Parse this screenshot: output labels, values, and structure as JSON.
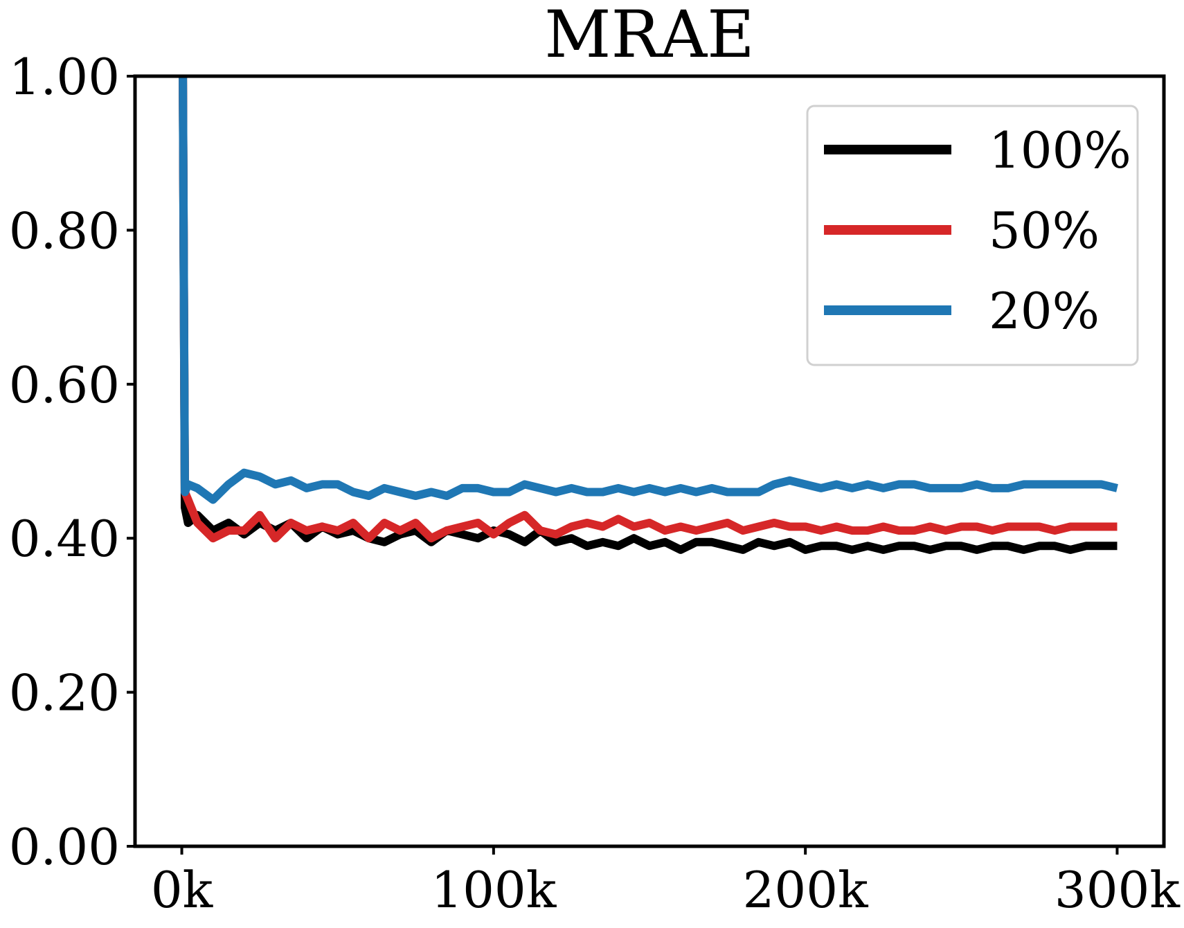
{
  "chart_data": {
    "type": "line",
    "title": "MRAE",
    "xlabel": "",
    "ylabel": "",
    "xlim": [
      -15000,
      315000
    ],
    "ylim": [
      0.0,
      1.0
    ],
    "x_ticks": [
      0,
      100000,
      200000,
      300000
    ],
    "x_tick_labels": [
      "0k",
      "100k",
      "200k",
      "300k"
    ],
    "y_ticks": [
      0.0,
      0.2,
      0.4,
      0.6,
      0.8,
      1.0
    ],
    "y_tick_labels": [
      "0.00",
      "0.20",
      "0.40",
      "0.60",
      "0.80",
      "1.00"
    ],
    "grid": false,
    "legend_position": "top-right",
    "x": [
      0,
      1000,
      2000,
      5000,
      10000,
      15000,
      20000,
      25000,
      30000,
      35000,
      40000,
      45000,
      50000,
      55000,
      60000,
      65000,
      70000,
      75000,
      80000,
      85000,
      90000,
      95000,
      100000,
      105000,
      110000,
      115000,
      120000,
      125000,
      130000,
      135000,
      140000,
      145000,
      150000,
      155000,
      160000,
      165000,
      170000,
      175000,
      180000,
      185000,
      190000,
      195000,
      200000,
      205000,
      210000,
      215000,
      220000,
      225000,
      230000,
      235000,
      240000,
      245000,
      250000,
      255000,
      260000,
      265000,
      270000,
      275000,
      280000,
      285000,
      290000,
      295000,
      300000
    ],
    "series": [
      {
        "name": "100%",
        "color": "#000000",
        "values": [
          1.3,
          0.44,
          0.42,
          0.43,
          0.41,
          0.42,
          0.405,
          0.42,
          0.41,
          0.42,
          0.4,
          0.415,
          0.405,
          0.41,
          0.4,
          0.395,
          0.405,
          0.41,
          0.395,
          0.41,
          0.405,
          0.4,
          0.41,
          0.405,
          0.395,
          0.41,
          0.395,
          0.4,
          0.39,
          0.395,
          0.39,
          0.4,
          0.39,
          0.395,
          0.385,
          0.395,
          0.395,
          0.39,
          0.385,
          0.395,
          0.39,
          0.395,
          0.385,
          0.39,
          0.39,
          0.385,
          0.39,
          0.385,
          0.39,
          0.39,
          0.385,
          0.39,
          0.39,
          0.385,
          0.39,
          0.39,
          0.385,
          0.39,
          0.39,
          0.385,
          0.39,
          0.39,
          0.39
        ]
      },
      {
        "name": "50%",
        "color": "#d62728",
        "values": [
          1.3,
          0.46,
          0.45,
          0.42,
          0.4,
          0.41,
          0.41,
          0.43,
          0.4,
          0.42,
          0.41,
          0.415,
          0.41,
          0.42,
          0.4,
          0.42,
          0.41,
          0.42,
          0.4,
          0.41,
          0.415,
          0.42,
          0.405,
          0.42,
          0.43,
          0.41,
          0.405,
          0.415,
          0.42,
          0.415,
          0.425,
          0.415,
          0.42,
          0.41,
          0.415,
          0.41,
          0.415,
          0.42,
          0.41,
          0.415,
          0.42,
          0.415,
          0.415,
          0.41,
          0.415,
          0.41,
          0.41,
          0.415,
          0.41,
          0.41,
          0.415,
          0.41,
          0.415,
          0.415,
          0.41,
          0.415,
          0.415,
          0.415,
          0.41,
          0.415,
          0.415,
          0.415,
          0.415
        ]
      },
      {
        "name": "20%",
        "color": "#1f77b4",
        "values": [
          1.3,
          0.46,
          0.47,
          0.465,
          0.45,
          0.47,
          0.485,
          0.48,
          0.47,
          0.475,
          0.465,
          0.47,
          0.47,
          0.46,
          0.455,
          0.465,
          0.46,
          0.455,
          0.46,
          0.455,
          0.465,
          0.465,
          0.46,
          0.46,
          0.47,
          0.465,
          0.46,
          0.465,
          0.46,
          0.46,
          0.465,
          0.46,
          0.465,
          0.46,
          0.465,
          0.46,
          0.465,
          0.46,
          0.46,
          0.46,
          0.47,
          0.475,
          0.47,
          0.465,
          0.47,
          0.465,
          0.47,
          0.465,
          0.47,
          0.47,
          0.465,
          0.465,
          0.465,
          0.47,
          0.465,
          0.465,
          0.47,
          0.47,
          0.47,
          0.47,
          0.47,
          0.47,
          0.465
        ]
      }
    ]
  }
}
